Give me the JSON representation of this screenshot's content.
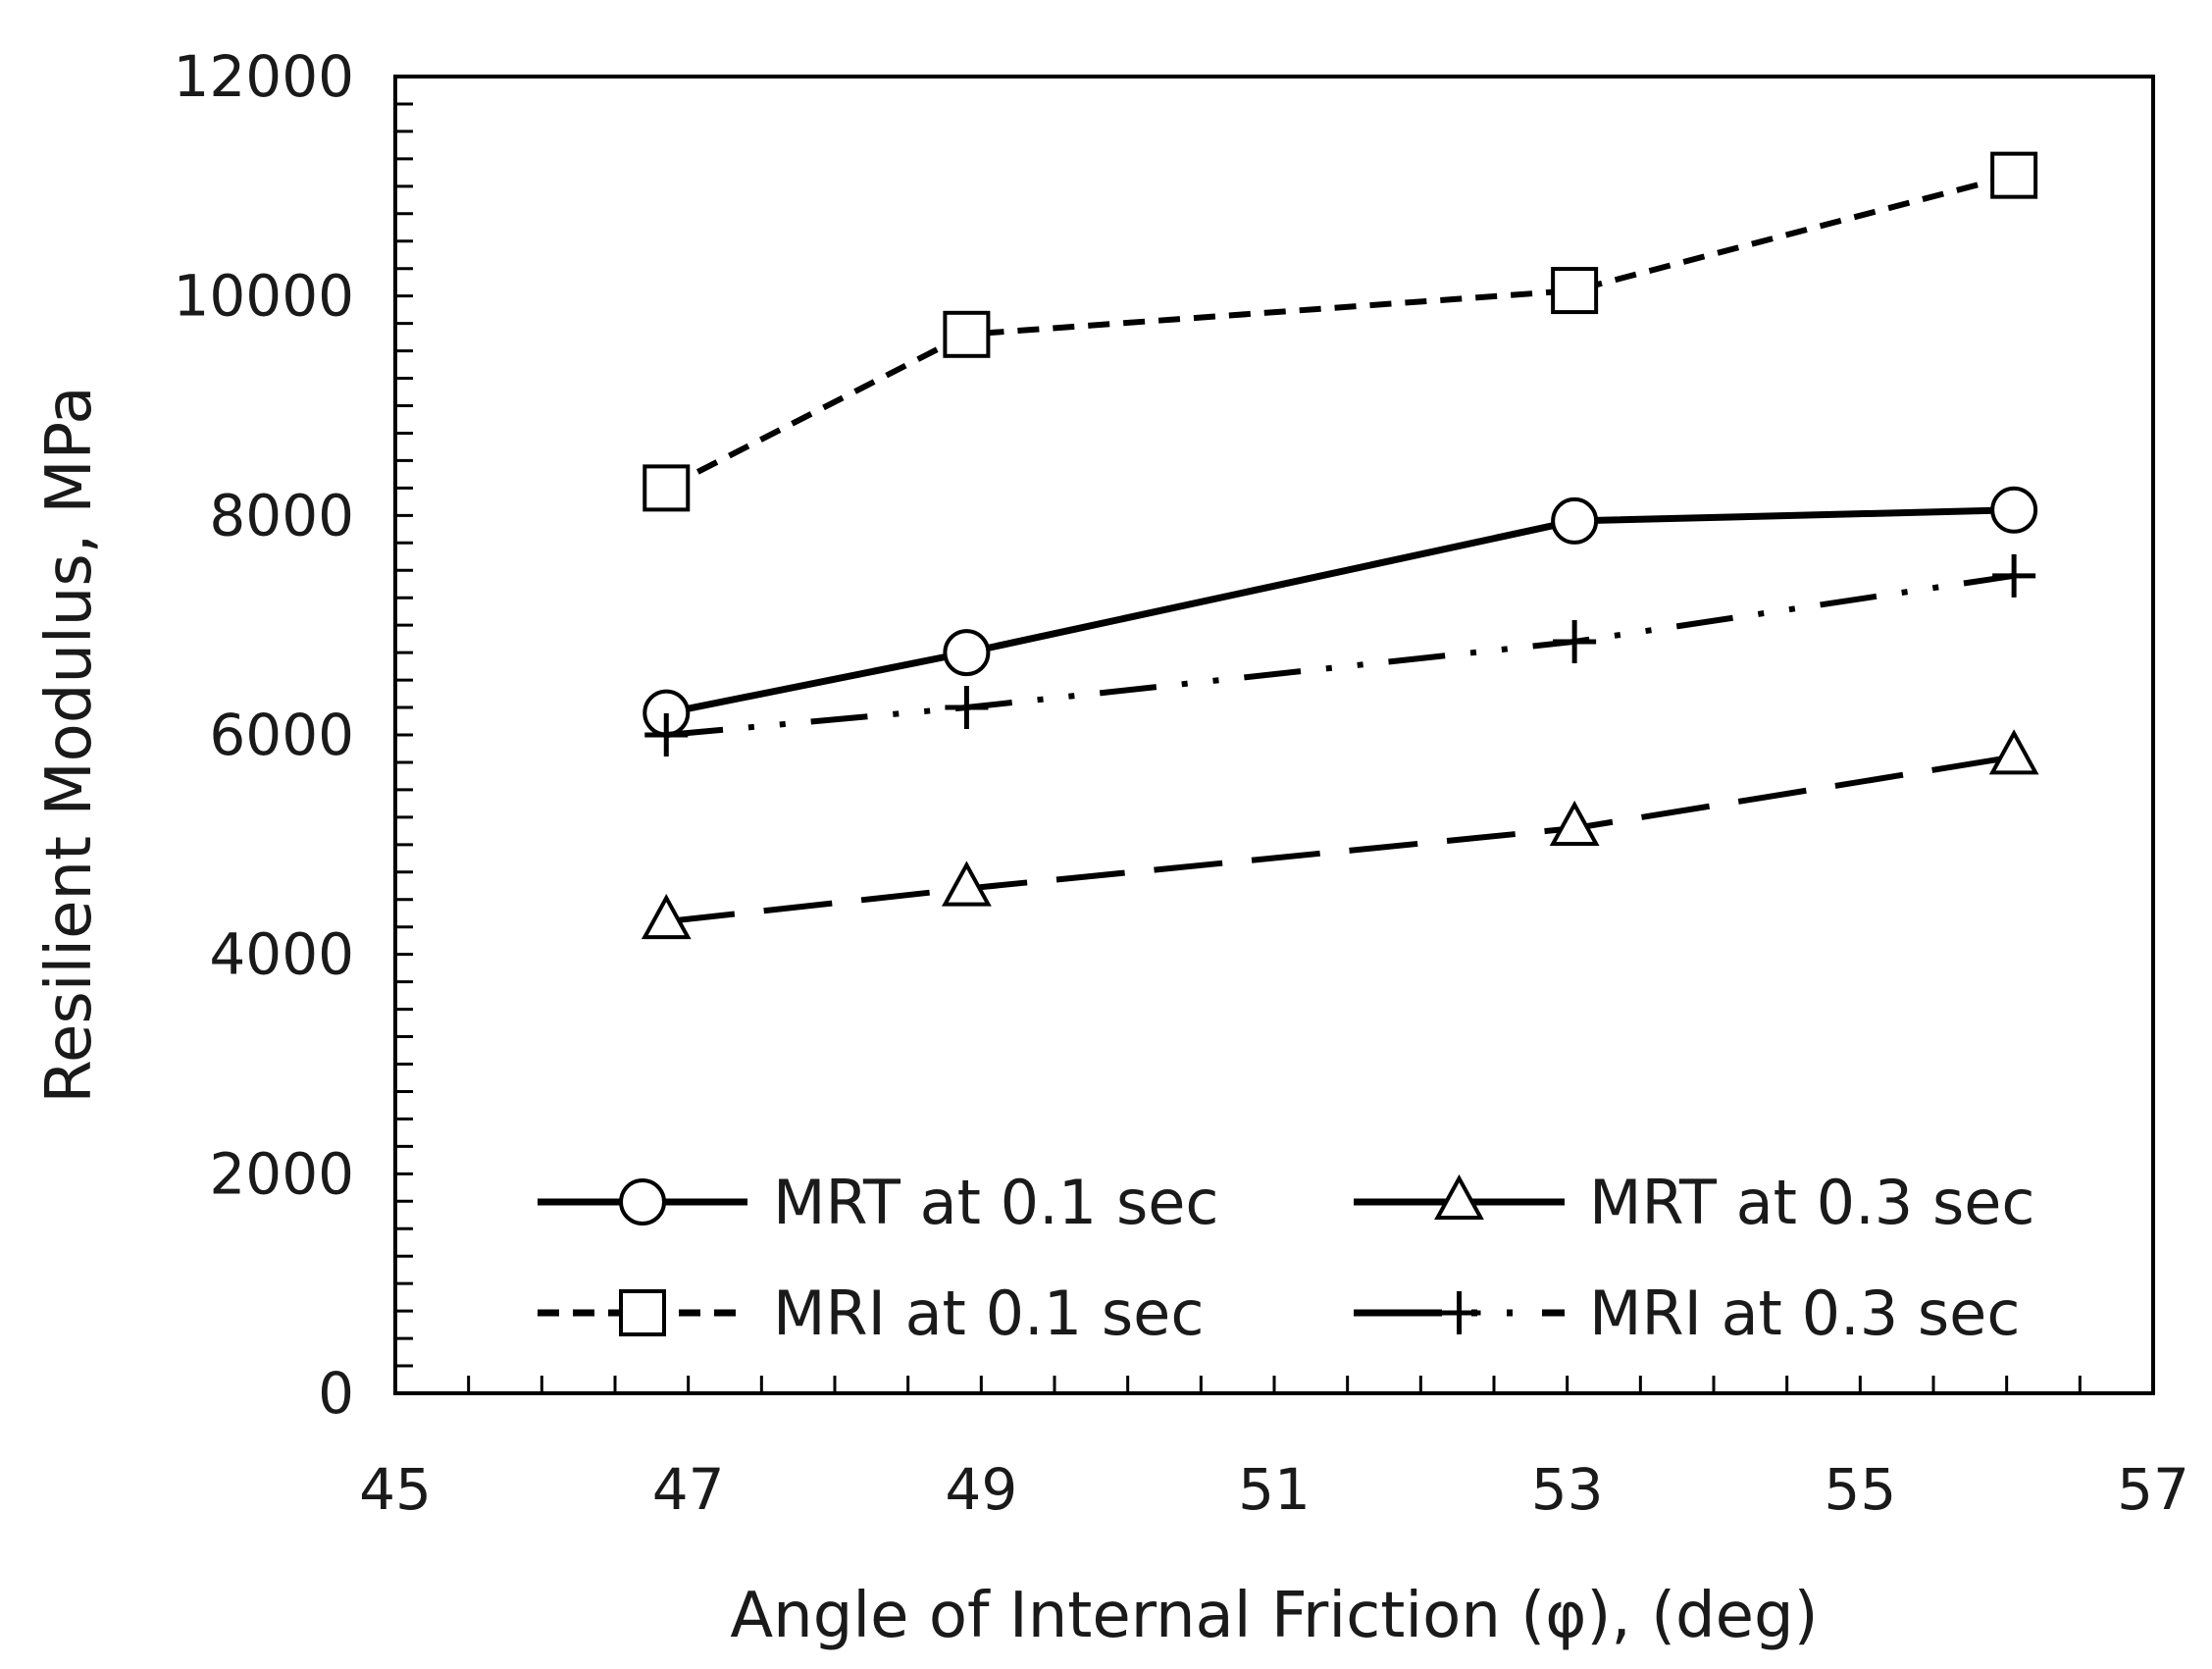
{
  "chart_data": {
    "type": "line",
    "title": "",
    "xlabel": "Angle of Internal Friction (φ), (deg)",
    "ylabel": "Resilient Modulus, MPa",
    "xlim": [
      45,
      57
    ],
    "ylim": [
      0,
      12000
    ],
    "x_ticks": [
      "45",
      "47",
      "49",
      "51",
      "53",
      "55",
      "57"
    ],
    "y_ticks": [
      "0",
      "2000",
      "4000",
      "6000",
      "8000",
      "10000",
      "12000"
    ],
    "legend_position": "bottom",
    "series": [
      {
        "name": "MRT at 0.1 sec",
        "marker": "circle",
        "line_style": "solid",
        "x": [
          46.85,
          48.9,
          53.05,
          56.05
        ],
        "y": [
          6200,
          6750,
          7950,
          8050
        ]
      },
      {
        "name": "MRT at 0.3 sec",
        "marker": "triangle",
        "line_style": "long-dash",
        "x": [
          46.85,
          48.9,
          53.05,
          56.05
        ],
        "y": [
          4300,
          4600,
          5150,
          5800
        ]
      },
      {
        "name": "MRI at 0.1 sec",
        "marker": "square",
        "line_style": "short-dash",
        "x": [
          46.85,
          48.9,
          53.05,
          56.05
        ],
        "y": [
          8250,
          9650,
          10050,
          11100
        ]
      },
      {
        "name": "MRI at 0.3 sec",
        "marker": "plus",
        "line_style": "dash-dot-dot",
        "x": [
          46.85,
          48.9,
          53.05,
          56.05
        ],
        "y": [
          6000,
          6250,
          6850,
          7450
        ]
      }
    ]
  }
}
